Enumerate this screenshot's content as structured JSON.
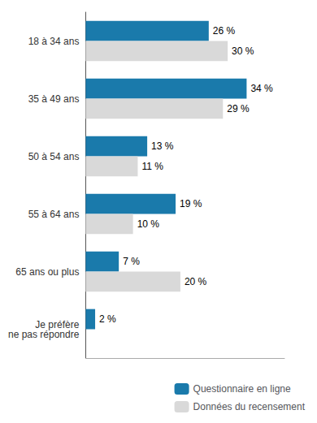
{
  "chart_data": {
    "type": "bar",
    "orientation": "horizontal",
    "categories": [
      "18 à 34 ans",
      "35 à 49 ans",
      "50 à 54 ans",
      "55 à 64 ans",
      "65 ans ou plus",
      "Je préfère\nne pas répondre"
    ],
    "series": [
      {
        "name": "Questionnaire en ligne",
        "color": "#1a7aab",
        "values": [
          26,
          34,
          13,
          19,
          7,
          2
        ],
        "value_labels": [
          "26 %",
          "34 %",
          "13 %",
          "19 %",
          "7 %",
          "2 %"
        ]
      },
      {
        "name": "Données du recensement",
        "color": "#d9d9d9",
        "values": [
          30,
          29,
          11,
          10,
          20,
          null
        ],
        "value_labels": [
          "30 %",
          "29 %",
          "11 %",
          "10 %",
          "20 %",
          null
        ]
      }
    ],
    "xlim": [
      0,
      42
    ],
    "tick_labels": "y",
    "grid": false,
    "data_labels": true,
    "legend": "lower right"
  }
}
